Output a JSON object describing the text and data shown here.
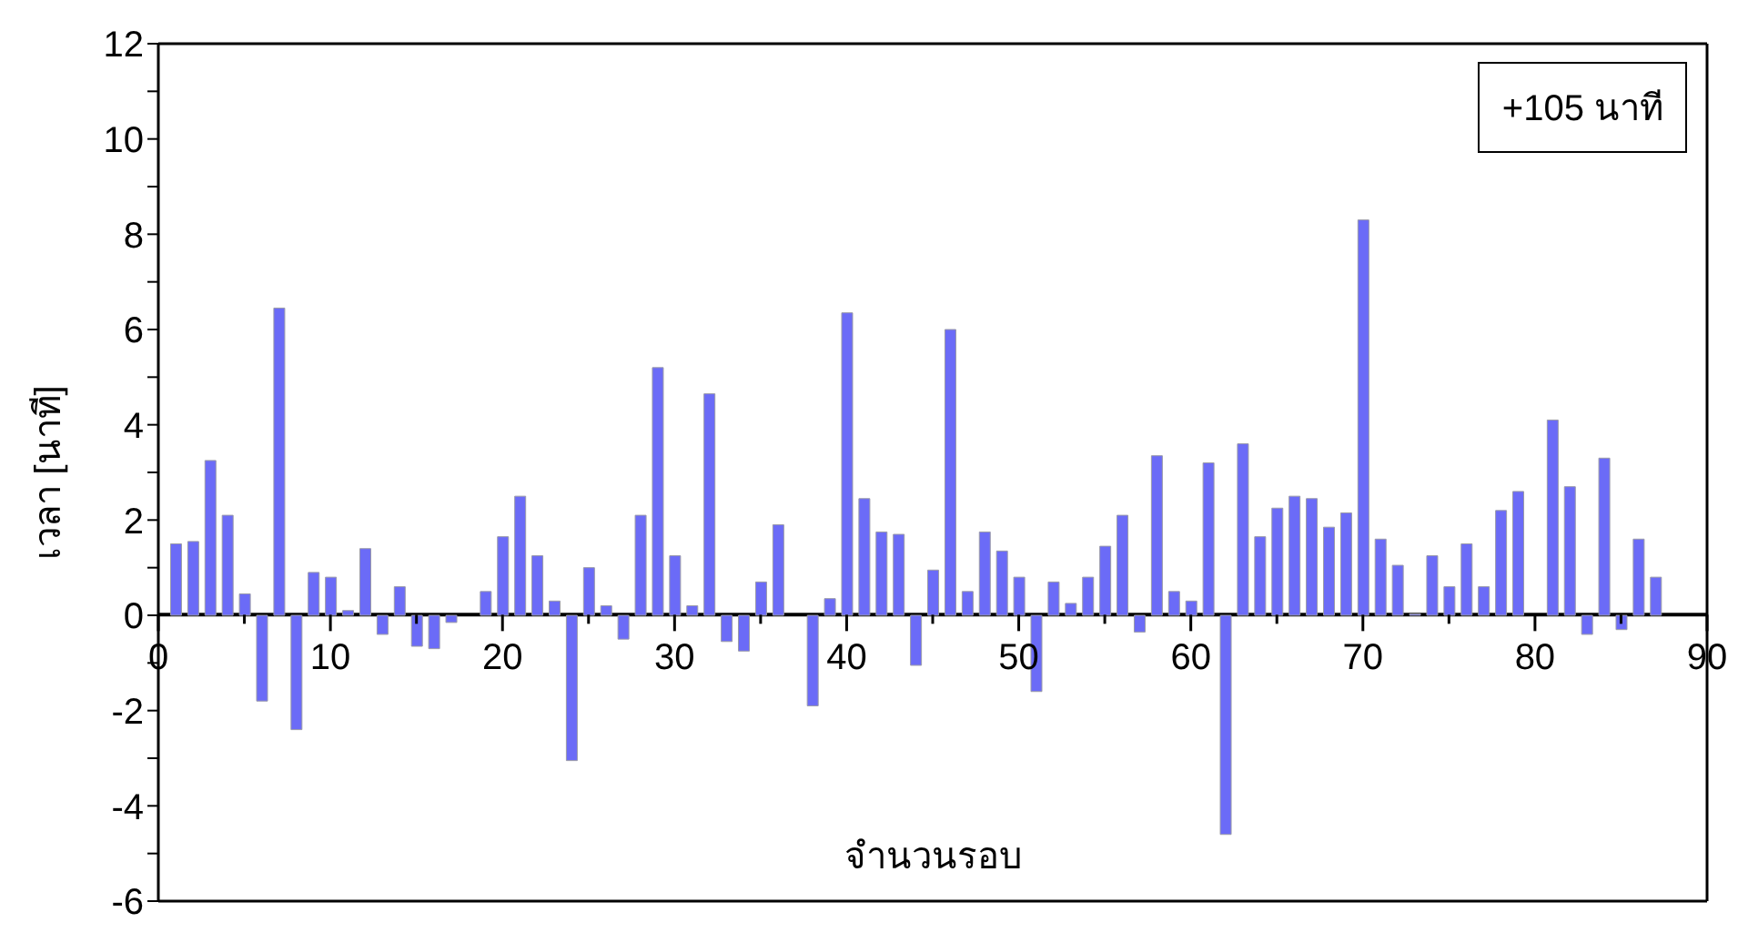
{
  "chart_data": {
    "type": "bar",
    "xlabel": "จำนวนรอบ",
    "ylabel": "เวลา [นาที]",
    "annotations": [
      "+105 นาที"
    ],
    "color": "#6b6bf7",
    "x": [
      1,
      2,
      3,
      4,
      5,
      6,
      7,
      8,
      9,
      10,
      11,
      12,
      13,
      14,
      15,
      16,
      17,
      18,
      19,
      20,
      21,
      22,
      23,
      24,
      25,
      26,
      27,
      28,
      29,
      30,
      31,
      32,
      33,
      34,
      35,
      36,
      37,
      38,
      39,
      40,
      41,
      42,
      43,
      44,
      45,
      46,
      47,
      48,
      49,
      50,
      51,
      52,
      53,
      54,
      55,
      56,
      57,
      58,
      59,
      60,
      61,
      62,
      63,
      64,
      65,
      66,
      67,
      68,
      69,
      70,
      71,
      72,
      73,
      74,
      75,
      76,
      77,
      78,
      79,
      80,
      81,
      82,
      83,
      84,
      85,
      86,
      87
    ],
    "values": [
      1.5,
      1.55,
      3.25,
      2.1,
      0.45,
      -1.8,
      6.45,
      -2.4,
      0.9,
      0.8,
      0.1,
      1.4,
      -0.4,
      0.6,
      -0.65,
      -0.7,
      -0.15,
      null,
      0.5,
      1.65,
      2.5,
      1.25,
      0.3,
      -3.05,
      1.0,
      0.2,
      -0.5,
      2.1,
      5.2,
      1.25,
      0.2,
      4.65,
      -0.55,
      -0.75,
      0.7,
      1.9,
      null,
      -1.9,
      0.35,
      6.35,
      2.45,
      1.75,
      1.7,
      -1.05,
      0.95,
      6.0,
      0.5,
      1.75,
      1.35,
      0.8,
      -1.6,
      0.7,
      0.25,
      0.8,
      1.45,
      2.1,
      -0.35,
      3.35,
      0.5,
      0.3,
      3.2,
      -4.6,
      3.6,
      1.65,
      2.25,
      2.5,
      2.45,
      1.85,
      2.15,
      8.3,
      1.6,
      1.05,
      0.03,
      1.25,
      0.6,
      1.5,
      0.6,
      2.2,
      2.6,
      null,
      4.1,
      2.7,
      -0.4,
      3.3,
      -0.3,
      1.6,
      0.8
    ],
    "xlim": [
      0,
      90
    ],
    "xticks": [
      0,
      {
        "value": 5,
        "label": null
      },
      10,
      {
        "value": 15,
        "label": null
      },
      20,
      {
        "value": 25,
        "label": null
      },
      30,
      {
        "value": 35,
        "label": null
      },
      40,
      {
        "value": 45,
        "label": null
      },
      50,
      {
        "value": 55,
        "label": null
      },
      60,
      {
        "value": 65,
        "label": null
      },
      70,
      {
        "value": 75,
        "label": null
      },
      80,
      {
        "value": 85,
        "label": null
      },
      90
    ],
    "ylim": [
      -6,
      12
    ],
    "yticks": [
      -6,
      {
        "value": -5,
        "label": null
      },
      -4,
      {
        "value": -3,
        "label": null
      },
      -2,
      {
        "value": -1,
        "label": null
      },
      0,
      {
        "value": 1,
        "label": null
      },
      2,
      {
        "value": 3,
        "label": null
      },
      4,
      {
        "value": 5,
        "label": null
      },
      6,
      {
        "value": 7,
        "label": null
      },
      8,
      {
        "value": 9,
        "label": null
      },
      10,
      {
        "value": 11,
        "label": null
      },
      12
    ],
    "grid": false,
    "legend": false
  }
}
